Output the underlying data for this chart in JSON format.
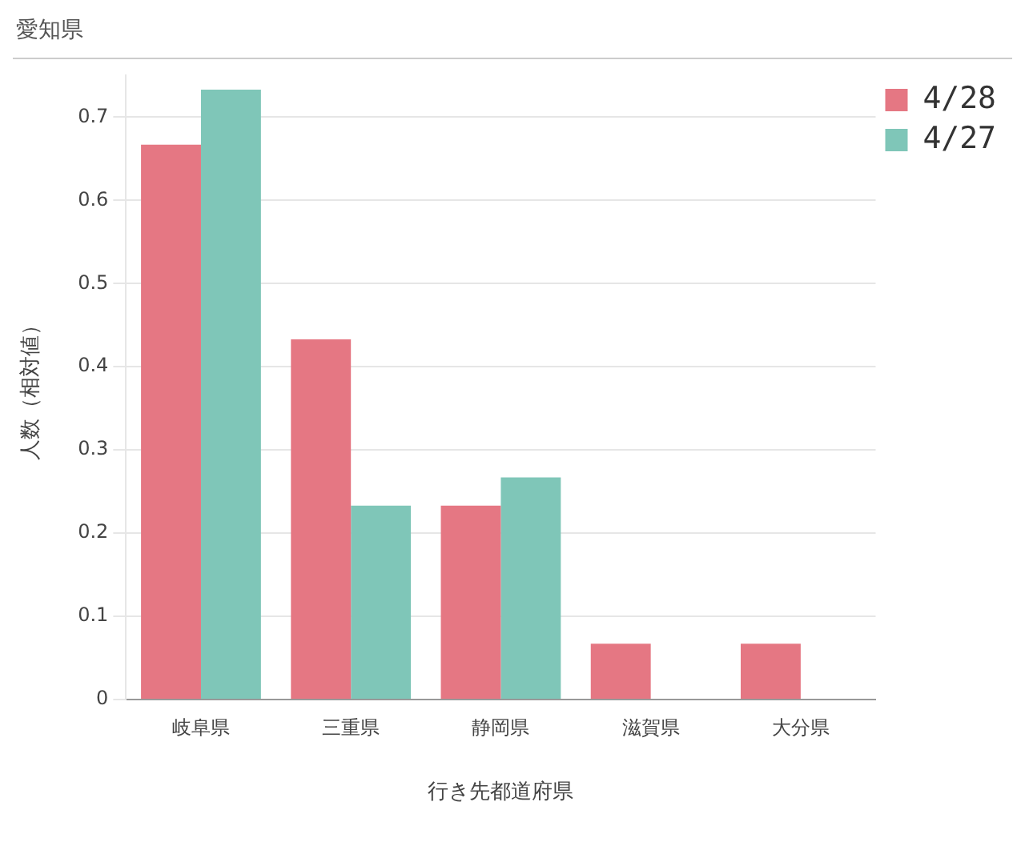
{
  "chart_data": {
    "type": "bar",
    "title": "愛知県",
    "categories": [
      "岐阜県",
      "三重県",
      "静岡県",
      "滋賀県",
      "大分県"
    ],
    "series": [
      {
        "name": "4/28",
        "color": "#e57783",
        "values": [
          0.667,
          0.433,
          0.233,
          0.067,
          0.067
        ]
      },
      {
        "name": "4/27",
        "color": "#7fc6b8",
        "values": [
          0.733,
          0.233,
          0.267,
          0,
          0
        ]
      }
    ],
    "xlabel": "行き先都道府県",
    "ylabel": "人数（相対値）",
    "ylim": [
      0,
      0.75
    ],
    "yticks": [
      0,
      0.1,
      0.2,
      0.3,
      0.4,
      0.5,
      0.6,
      0.7
    ],
    "grid": "y",
    "legend": "top right"
  }
}
